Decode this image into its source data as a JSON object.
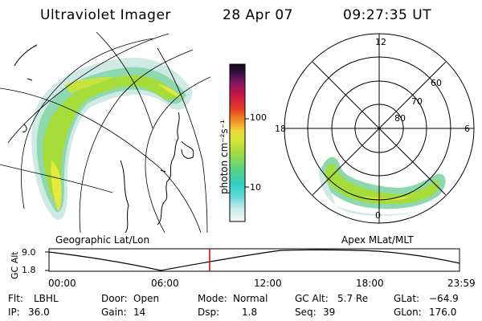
{
  "header": {
    "title": "Ultraviolet Imager",
    "date": "28 Apr 07",
    "time": "09:27:35 UT"
  },
  "map_panel": {
    "caption": "Geographic Lat/Lon"
  },
  "polar_panel": {
    "caption": "Apex MLat/MLT",
    "mlt_labels": {
      "top": "12",
      "left": "18",
      "right": "6",
      "bottom": "0"
    },
    "lat_labels": [
      "60",
      "70",
      "80"
    ]
  },
  "colorbar": {
    "unit_label": "photon cm⁻²s⁻¹",
    "ticks": [
      "100",
      "10"
    ]
  },
  "altitude_plot": {
    "axis_label": "GC Alt",
    "y_ticks": [
      "9.0",
      "1.8"
    ],
    "x_ticks": [
      "00:00",
      "06:00",
      "12:00",
      "18:00",
      "23:59"
    ],
    "marker_color": "#cc0000"
  },
  "status": {
    "flt_label": "Flt:",
    "flt_value": "LBHL",
    "ip_label": "IP:",
    "ip_value": "36.0",
    "door_label": "Door:",
    "door_value": "Open",
    "gain_label": "Gain:",
    "gain_value": "14",
    "mode_label": "Mode:",
    "mode_value": "Normal",
    "dsp_label": "Dsp:",
    "dsp_value": "1.8",
    "gcalt_label": "GC Alt:",
    "gcalt_value": "5.7 Re",
    "seq_label": "Seq:",
    "seq_value": "39",
    "glat_label": "GLat:",
    "glat_value": "−64.9",
    "glon_label": "GLon:",
    "glon_value": "176.0"
  }
}
